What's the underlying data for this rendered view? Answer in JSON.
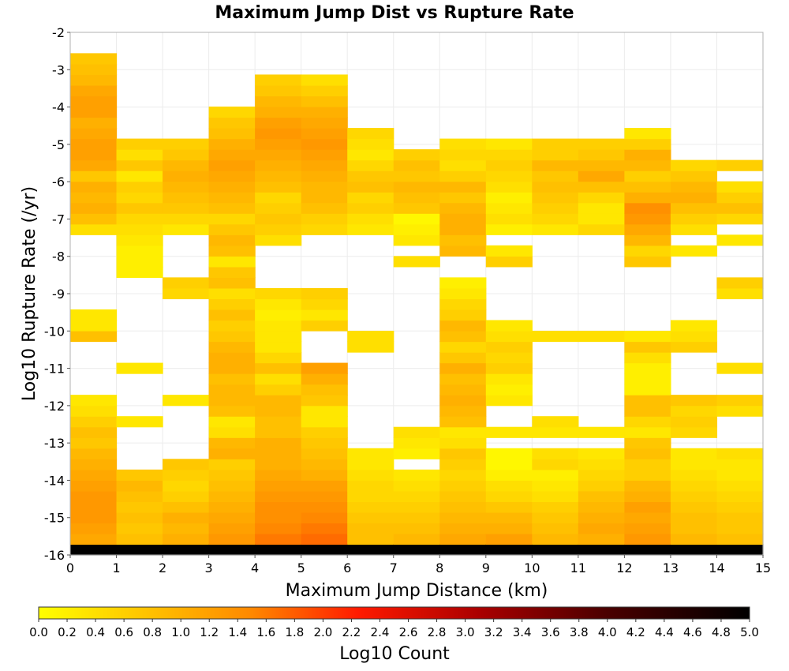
{
  "chart_data": {
    "type": "heatmap",
    "title": "Maximum Jump Dist vs Rupture Rate",
    "xlabel": "Maximum Jump Distance (km)",
    "ylabel": "Log10 Rupture Rate (/yr)",
    "xlim": [
      0,
      15
    ],
    "ylim": [
      -16,
      -2
    ],
    "x_ticks": [
      "0",
      "1",
      "2",
      "3",
      "4",
      "5",
      "6",
      "7",
      "8",
      "9",
      "10",
      "11",
      "12",
      "13",
      "14",
      "15"
    ],
    "y_ticks": [
      "-2",
      "-3",
      "-4",
      "-5",
      "-6",
      "-7",
      "-8",
      "-9",
      "-10",
      "-11",
      "-12",
      "-13",
      "-14",
      "-15",
      "-16"
    ],
    "grid": true,
    "colorbar": {
      "label": "Log10 Count",
      "range": [
        0,
        5
      ],
      "ticks": [
        "0.0",
        "0.2",
        "0.4",
        "0.6",
        "0.8",
        "1.0",
        "1.2",
        "1.4",
        "1.6",
        "1.8",
        "2.0",
        "2.2",
        "2.4",
        "2.6",
        "2.8",
        "3.0",
        "3.2",
        "3.4",
        "3.6",
        "3.8",
        "4.0",
        "4.2",
        "4.4",
        "4.6",
        "4.8",
        "5.0"
      ],
      "colors": [
        "#ffff00",
        "#ff6f00",
        "#ff0000",
        "#000000"
      ],
      "placement": "bottom"
    },
    "bin_size": {
      "x": 1,
      "y": 0.286
    },
    "columns": [
      {
        "x": 0,
        "y_start": -16.0,
        "values": [
          5.0,
          1.1,
          1.2,
          1.3,
          1.3,
          1.3,
          1.2,
          1.1,
          1.0,
          0.9,
          0.7,
          0.8,
          0.6,
          0.4,
          0.3,
          null,
          null,
          null,
          null,
          null,
          0.8,
          0.3,
          0.3,
          null,
          null,
          null,
          null,
          null,
          null,
          null,
          0.4,
          0.8,
          1.0,
          0.9,
          1.0,
          0.7,
          1.1,
          1.2,
          1.2,
          1.1,
          1.0,
          1.2,
          1.2,
          1.1,
          0.9,
          0.8,
          0.7
        ]
      },
      {
        "x": 1,
        "y_start": -16.0,
        "values": [
          5.0,
          0.8,
          0.7,
          0.8,
          0.7,
          0.8,
          0.9,
          0.7,
          null,
          null,
          null,
          null,
          0.3,
          null,
          null,
          null,
          null,
          0.3,
          null,
          null,
          null,
          null,
          null,
          null,
          null,
          null,
          0.2,
          0.2,
          0.2,
          0.3,
          0.4,
          0.5,
          0.7,
          0.5,
          0.6,
          0.3,
          0.7,
          0.4,
          0.6
        ]
      },
      {
        "x": 2,
        "y_start": -16.0,
        "values": [
          5.0,
          1.0,
          0.9,
          1.0,
          0.8,
          0.6,
          0.5,
          0.6,
          0.7,
          null,
          null,
          null,
          null,
          null,
          0.3,
          null,
          null,
          null,
          null,
          null,
          null,
          null,
          null,
          null,
          0.5,
          0.6,
          null,
          null,
          null,
          null,
          0.3,
          0.5,
          0.7,
          0.8,
          0.9,
          1.0,
          0.9,
          0.7,
          0.6
        ]
      },
      {
        "x": 3,
        "y_start": -16.0,
        "values": [
          5.0,
          1.3,
          1.2,
          1.1,
          1.0,
          0.9,
          0.8,
          0.7,
          0.6,
          1.0,
          0.9,
          0.4,
          0.3,
          0.8,
          0.9,
          0.9,
          0.8,
          1.0,
          1.0,
          0.9,
          0.7,
          0.6,
          0.8,
          0.6,
          0.4,
          0.8,
          0.7,
          0.3,
          0.8,
          0.9,
          0.7,
          0.5,
          0.8,
          0.9,
          1.0,
          1.1,
          1.2,
          1.1,
          1.0,
          0.8,
          0.7,
          0.5
        ]
      },
      {
        "x": 4,
        "y_start": -16.0,
        "values": [
          5.0,
          1.6,
          1.5,
          1.4,
          1.4,
          1.3,
          1.2,
          1.1,
          1.0,
          1.0,
          1.0,
          0.8,
          0.8,
          0.9,
          0.9,
          0.6,
          0.4,
          0.8,
          0.5,
          0.3,
          0.3,
          0.3,
          0.2,
          0.3,
          0.5,
          null,
          null,
          null,
          null,
          0.4,
          0.6,
          0.7,
          0.6,
          0.5,
          0.8,
          0.9,
          1.0,
          1.1,
          1.2,
          1.3,
          1.2,
          1.0,
          0.9,
          0.7,
          0.6
        ]
      },
      {
        "x": 5,
        "y_start": -16.0,
        "values": [
          5.0,
          1.7,
          1.6,
          1.5,
          1.4,
          1.3,
          1.2,
          1.0,
          0.9,
          0.8,
          0.7,
          0.6,
          0.3,
          0.3,
          0.7,
          0.8,
          1.0,
          1.2,
          null,
          null,
          null,
          0.6,
          0.3,
          0.5,
          0.6,
          null,
          null,
          null,
          null,
          null,
          0.5,
          0.6,
          0.8,
          0.9,
          0.9,
          1.0,
          1.1,
          1.2,
          1.3,
          1.2,
          1.1,
          1.0,
          0.8,
          0.6,
          0.4
        ]
      },
      {
        "x": 6,
        "y_start": -16.0,
        "values": [
          5.0,
          0.8,
          0.8,
          0.7,
          0.6,
          0.5,
          0.5,
          0.4,
          0.3,
          0.3,
          null,
          null,
          null,
          null,
          null,
          null,
          null,
          null,
          null,
          0.4,
          0.4,
          null,
          null,
          null,
          null,
          null,
          null,
          null,
          null,
          null,
          0.3,
          0.4,
          0.6,
          0.5,
          0.8,
          0.7,
          0.5,
          0.3,
          0.4,
          0.5
        ]
      },
      {
        "x": 7,
        "y_start": -16.0,
        "values": [
          5.0,
          0.9,
          0.8,
          0.7,
          0.6,
          0.5,
          0.4,
          0.3,
          null,
          0.2,
          0.3,
          0.4,
          null,
          null,
          null,
          null,
          null,
          null,
          null,
          null,
          null,
          null,
          null,
          null,
          null,
          null,
          null,
          0.4,
          null,
          0.3,
          0.2,
          0.1,
          0.7,
          0.8,
          0.9,
          0.7,
          0.8,
          0.6
        ]
      },
      {
        "x": 8,
        "y_start": -16.0,
        "values": [
          5.0,
          1.1,
          1.0,
          0.9,
          0.8,
          0.7,
          0.6,
          0.5,
          0.6,
          0.7,
          0.4,
          0.3,
          0.8,
          0.9,
          1.0,
          0.9,
          0.8,
          1.0,
          0.7,
          0.5,
          0.8,
          0.9,
          0.6,
          0.5,
          0.3,
          0.2,
          null,
          null,
          0.9,
          0.8,
          1.0,
          1.0,
          0.9,
          0.7,
          0.9,
          0.6,
          0.4,
          0.5,
          0.4
        ]
      },
      {
        "x": 9,
        "y_start": -16.0,
        "values": [
          5.0,
          1.2,
          1.0,
          0.9,
          0.7,
          0.5,
          0.4,
          0.2,
          0.1,
          0.1,
          null,
          0.3,
          null,
          null,
          0.3,
          0.2,
          0.3,
          0.6,
          0.5,
          0.6,
          0.4,
          0.3,
          null,
          null,
          null,
          null,
          null,
          0.6,
          0.3,
          null,
          0.2,
          0.4,
          0.3,
          0.2,
          0.4,
          0.5,
          0.6,
          0.5,
          0.3
        ]
      },
      {
        "x": 10,
        "y_start": -16.0,
        "values": [
          5.0,
          0.9,
          0.8,
          0.7,
          0.6,
          0.4,
          0.3,
          0.2,
          0.5,
          0.4,
          null,
          0.3,
          0.4,
          null,
          null,
          null,
          null,
          null,
          null,
          null,
          0.4,
          null,
          null,
          null,
          null,
          null,
          null,
          null,
          null,
          null,
          0.3,
          0.5,
          0.6,
          0.7,
          0.8,
          0.7,
          0.9,
          0.6,
          0.6
        ]
      },
      {
        "x": 11,
        "y_start": -16.0,
        "values": [
          5.0,
          1.0,
          1.1,
          1.0,
          0.9,
          0.8,
          0.6,
          0.5,
          0.4,
          0.3,
          null,
          0.3,
          null,
          null,
          null,
          null,
          null,
          null,
          null,
          null,
          0.4,
          null,
          null,
          null,
          null,
          null,
          null,
          null,
          null,
          null,
          0.5,
          0.3,
          0.3,
          0.5,
          0.8,
          1.1,
          0.9,
          0.7,
          0.6
        ]
      },
      {
        "x": 12,
        "y_start": -16.0,
        "values": [
          5.0,
          1.3,
          1.2,
          1.1,
          1.2,
          1.0,
          0.9,
          0.6,
          0.6,
          0.8,
          0.7,
          0.3,
          0.5,
          0.8,
          0.8,
          0.2,
          0.2,
          0.2,
          0.4,
          0.7,
          0.3,
          null,
          null,
          null,
          null,
          null,
          null,
          0.7,
          0.5,
          0.9,
          1.1,
          1.3,
          1.4,
          1.0,
          0.8,
          0.6,
          0.9,
          1.0,
          0.6,
          0.3
        ]
      },
      {
        "x": 13,
        "y_start": -16.0,
        "values": [
          5.0,
          0.9,
          0.8,
          0.8,
          0.7,
          0.6,
          0.5,
          0.4,
          0.3,
          0.3,
          null,
          0.5,
          0.6,
          0.5,
          0.7,
          null,
          null,
          null,
          null,
          0.6,
          0.4,
          0.3,
          null,
          null,
          null,
          null,
          null,
          null,
          0.3,
          null,
          0.4,
          0.6,
          0.8,
          1.0,
          0.9,
          0.7,
          0.5
        ]
      },
      {
        "x": 14,
        "y_start": -16.0,
        "values": [
          5.0,
          0.8,
          0.7,
          0.7,
          0.6,
          0.5,
          0.4,
          0.3,
          0.3,
          0.4,
          null,
          null,
          null,
          0.4,
          0.6,
          null,
          null,
          0.4,
          null,
          null,
          null,
          null,
          null,
          null,
          0.4,
          0.6,
          null,
          null,
          null,
          0.3,
          null,
          0.5,
          0.8,
          0.6,
          0.4,
          null,
          0.6
        ]
      }
    ]
  }
}
